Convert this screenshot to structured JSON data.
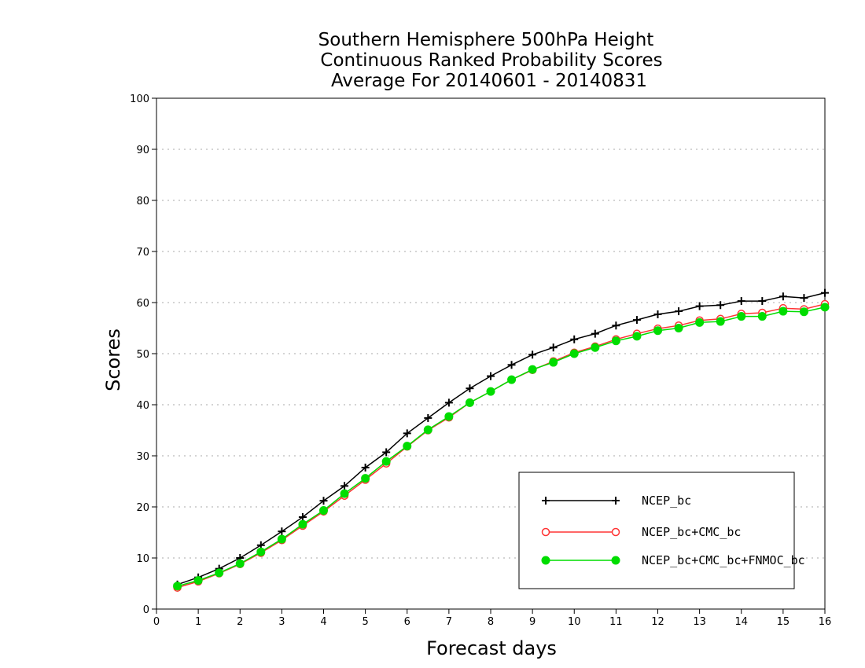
{
  "chart_data": {
    "type": "line",
    "title": [
      "Southern Hemisphere 500hPa Height",
      "Continuous Ranked Probability Scores",
      "Average For 20140601 - 20140831"
    ],
    "xlabel": "Forecast days",
    "ylabel": "Scores",
    "xlim": [
      0,
      16
    ],
    "ylim": [
      0,
      100
    ],
    "xticks": [
      "0",
      "1",
      "2",
      "3",
      "4",
      "5",
      "6",
      "7",
      "8",
      "9",
      "10",
      "11",
      "12",
      "13",
      "14",
      "15",
      "16"
    ],
    "yticks": [
      "0",
      "10",
      "20",
      "30",
      "40",
      "50",
      "60",
      "70",
      "80",
      "90",
      "100"
    ],
    "grid": "horizontal dotted",
    "legend_position": "bottom-right",
    "x": [
      0.5,
      1,
      1.5,
      2,
      2.5,
      3,
      3.5,
      4,
      4.5,
      5,
      5.5,
      6,
      6.5,
      7,
      7.5,
      8,
      8.5,
      9,
      9.5,
      10,
      10.5,
      11,
      11.5,
      12,
      12.5,
      13,
      13.5,
      14,
      14.5,
      15,
      15.5,
      16
    ],
    "series": [
      {
        "name": "NCEP_bc",
        "color": "#000000",
        "marker": "plus",
        "values": [
          4.8,
          6.2,
          7.9,
          10.0,
          12.5,
          15.2,
          18.0,
          21.2,
          24.1,
          27.7,
          30.7,
          34.4,
          37.4,
          40.4,
          43.2,
          45.6,
          47.8,
          49.8,
          51.2,
          52.8,
          53.9,
          55.5,
          56.6,
          57.7,
          58.3,
          59.3,
          59.5,
          60.3,
          60.3,
          61.2,
          60.9,
          61.9
        ]
      },
      {
        "name": "NCEP_bc+CMC_bc",
        "color": "#ff3333",
        "marker": "open-circle",
        "values": [
          4.2,
          5.4,
          7.0,
          8.8,
          11.0,
          13.5,
          16.3,
          19.1,
          22.2,
          25.3,
          28.5,
          31.8,
          35.0,
          37.5,
          40.4,
          42.6,
          44.9,
          46.8,
          48.5,
          50.2,
          51.4,
          52.8,
          53.9,
          54.9,
          55.5,
          56.5,
          56.8,
          57.8,
          58.0,
          58.9,
          58.7,
          59.7
        ]
      },
      {
        "name": "NCEP_bc+CMC_bc+FNMOC_bc",
        "color": "#00dd00",
        "marker": "filled-circle",
        "values": [
          4.5,
          5.6,
          7.1,
          8.9,
          11.2,
          13.7,
          16.6,
          19.3,
          22.6,
          25.6,
          28.9,
          31.9,
          35.1,
          37.7,
          40.4,
          42.6,
          44.9,
          46.9,
          48.3,
          50.0,
          51.2,
          52.5,
          53.4,
          54.5,
          55.0,
          56.1,
          56.3,
          57.3,
          57.3,
          58.3,
          58.2,
          59.1
        ]
      }
    ]
  }
}
